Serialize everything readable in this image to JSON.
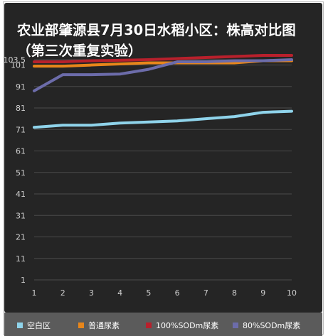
{
  "chart_data": {
    "type": "line",
    "title": "农业部肇源县7月30日水稻小区：株高对比图（第三次重复实验）",
    "x": [
      1,
      2,
      3,
      4,
      5,
      6,
      7,
      8,
      9,
      10
    ],
    "y_ticks": [
      1,
      11,
      21,
      31,
      41,
      51,
      61,
      71,
      81,
      91,
      101,
      103.5
    ],
    "y_tick_labels": [
      "1",
      "11",
      "21",
      "31",
      "41",
      "51",
      "61",
      "71",
      "81",
      "91",
      "101",
      "103.5"
    ],
    "ylim": [
      1,
      103.5
    ],
    "grid": true,
    "legend_position": "bottom",
    "series": [
      {
        "name": "空白区",
        "color": "#8fd3ea",
        "values": [
          72,
          73,
          73,
          74,
          74.5,
          75,
          76,
          77,
          79,
          79.5
        ]
      },
      {
        "name": "普通尿素",
        "color": "#e8861a",
        "values": [
          100.5,
          100.5,
          101,
          101.5,
          102,
          102,
          102,
          102,
          103,
          103
        ]
      },
      {
        "name": "100%SODm尿素",
        "color": "#b8202c",
        "values": [
          102.5,
          102.5,
          103,
          103.2,
          103.5,
          104,
          104.5,
          105,
          105.5,
          105.5
        ]
      },
      {
        "name": "80%SODm尿素",
        "color": "#6c6caa",
        "values": [
          89,
          96.5,
          96.5,
          96.8,
          99,
          102.5,
          102.5,
          103,
          103,
          103.5
        ]
      }
    ]
  }
}
